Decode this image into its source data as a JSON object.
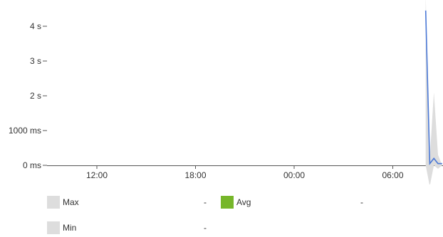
{
  "chart_data": {
    "type": "line",
    "title": "",
    "xlabel": "",
    "ylabel": "",
    "x_ticks": [
      "12:00",
      "18:00",
      "00:00",
      "06:00"
    ],
    "y_ticks": [
      "0 ms",
      "1000 ms",
      "2 s",
      "3 s",
      "4 s"
    ],
    "y_tick_values": [
      0,
      1,
      2,
      3,
      4
    ],
    "y_unit": "s",
    "ylim": [
      0,
      4.2
    ],
    "grid": false,
    "legend_position": "bottom",
    "x": [
      "08:00",
      "08:15",
      "08:30",
      "08:45",
      "09:00"
    ],
    "band": {
      "name": "Max / Min",
      "color": "#dddddd",
      "upper": [
        4.9,
        0.2,
        2.1,
        0.3,
        0.0
      ],
      "lower": [
        0.0,
        -0.6,
        0.0,
        -0.1,
        0.0
      ]
    },
    "series": [
      {
        "name": "Avg",
        "color": "#4a78d6",
        "values": [
          4.45,
          0.05,
          0.2,
          0.05,
          0.05
        ]
      }
    ]
  },
  "legend": {
    "items": [
      {
        "label": "Max",
        "value": "-",
        "color": "#dddddd"
      },
      {
        "label": "Avg",
        "value": "-",
        "color": "#76b62a"
      },
      {
        "label": "Min",
        "value": "-",
        "color": "#dddddd"
      }
    ]
  }
}
